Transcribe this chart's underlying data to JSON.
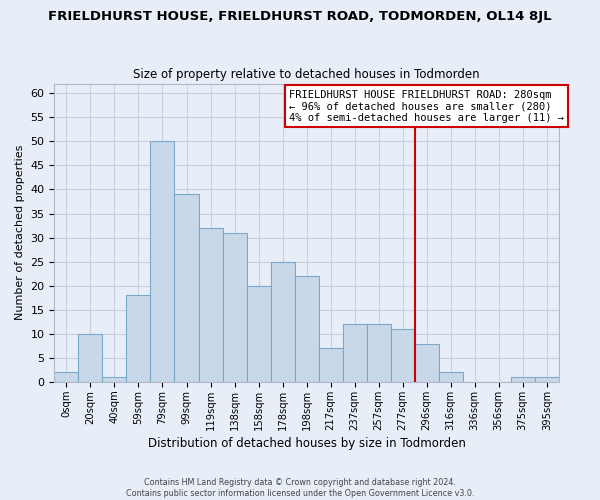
{
  "title": "FRIELDHURST HOUSE, FRIELDHURST ROAD, TODMORDEN, OL14 8JL",
  "subtitle": "Size of property relative to detached houses in Todmorden",
  "xlabel": "Distribution of detached houses by size in Todmorden",
  "ylabel": "Number of detached properties",
  "bar_labels": [
    "0sqm",
    "20sqm",
    "40sqm",
    "59sqm",
    "79sqm",
    "99sqm",
    "119sqm",
    "138sqm",
    "158sqm",
    "178sqm",
    "198sqm",
    "217sqm",
    "237sqm",
    "257sqm",
    "277sqm",
    "296sqm",
    "316sqm",
    "336sqm",
    "356sqm",
    "375sqm",
    "395sqm"
  ],
  "bar_heights": [
    2,
    10,
    1,
    18,
    50,
    39,
    32,
    31,
    20,
    25,
    22,
    7,
    12,
    12,
    11,
    8,
    2,
    0,
    0,
    1,
    1
  ],
  "bar_color": "#c8d8e8",
  "bar_edge_color": "#7aa8c8",
  "ylim": [
    0,
    62
  ],
  "yticks": [
    0,
    5,
    10,
    15,
    20,
    25,
    30,
    35,
    40,
    45,
    50,
    55,
    60
  ],
  "vline_color": "#cc0000",
  "annotation_title": "FRIELDHURST HOUSE FRIELDHURST ROAD: 280sqm",
  "annotation_line1": "← 96% of detached houses are smaller (280)",
  "annotation_line2": "4% of semi-detached houses are larger (11) →",
  "grid_color": "#c8cfe0",
  "bg_color": "#e8eef8",
  "footer1": "Contains HM Land Registry data © Crown copyright and database right 2024.",
  "footer2": "Contains public sector information licensed under the Open Government Licence v3.0."
}
